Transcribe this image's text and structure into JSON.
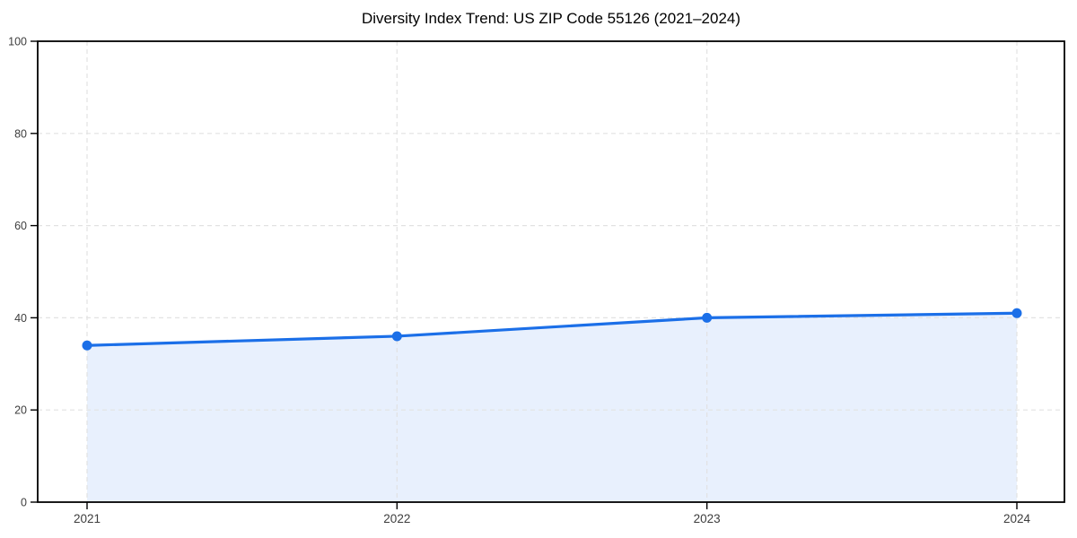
{
  "chart_data": {
    "type": "area",
    "title": "Diversity Index Trend: US ZIP Code 55126 (2021–2024)",
    "x": [
      2021,
      2022,
      2023,
      2024
    ],
    "values": [
      34,
      36,
      40,
      41
    ],
    "xlabel": "",
    "ylabel": "",
    "ylim": [
      0,
      100
    ],
    "y_ticks": [
      0,
      20,
      40,
      60,
      80,
      100
    ],
    "x_tick_labels": [
      "2021",
      "2022",
      "2023",
      "2024"
    ],
    "grid": "dashed-both-axes",
    "legend": "none",
    "marker": "circle",
    "colors": {
      "line": "#1b6fe8",
      "marker": "#1b6fe8",
      "fill": "#e8f0fd",
      "grid": "#e2e2e2",
      "axis": "#000000",
      "tick_label": "#3d3d3d",
      "title": "#000000",
      "background": "#ffffff"
    }
  }
}
